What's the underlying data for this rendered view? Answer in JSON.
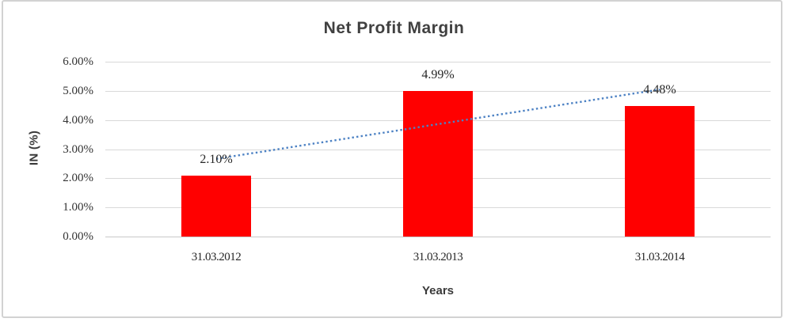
{
  "chart_data": {
    "type": "bar",
    "title": "Net Profit Margin",
    "categories": [
      "31.03.2012",
      "31.03.2013",
      "31.03.2014"
    ],
    "values": [
      2.1,
      4.99,
      4.48
    ],
    "data_labels": [
      "2.10%",
      "4.99%",
      "4.48%"
    ],
    "xlabel": "Years",
    "ylabel": "IN (%)",
    "ylim": [
      0,
      6
    ],
    "ytick_values": [
      0,
      1,
      2,
      3,
      4,
      5,
      6
    ],
    "ytick_labels": [
      "0.00%",
      "1.00%",
      "2.00%",
      "3.00%",
      "4.00%",
      "5.00%",
      "6.00%"
    ],
    "grid": true,
    "legend": "none",
    "bar_color": "#ff0000",
    "gridline_color": "#d9d9d9",
    "frame_color": "#d2d2d2",
    "trendline": {
      "type": "linear",
      "style": "dotted",
      "color": "#4d82c4"
    }
  }
}
